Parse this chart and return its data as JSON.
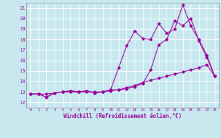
{
  "xlabel": "Windchill (Refroidissement éolien,°C)",
  "xlim": [
    -0.5,
    23.5
  ],
  "ylim": [
    11.5,
    21.5
  ],
  "ytick_labels": [
    "12",
    "13",
    "14",
    "15",
    "16",
    "17",
    "18",
    "19",
    "20",
    "21"
  ],
  "ytick_vals": [
    12,
    13,
    14,
    15,
    16,
    17,
    18,
    19,
    20,
    21
  ],
  "xtick_vals": [
    0,
    1,
    2,
    3,
    4,
    5,
    6,
    7,
    8,
    9,
    10,
    11,
    12,
    13,
    14,
    15,
    16,
    17,
    18,
    19,
    20,
    21,
    22,
    23
  ],
  "bg_color": "#c8e8f0",
  "grid_color": "#ffffff",
  "line_color": "#990099",
  "line1_x": [
    0,
    1,
    2,
    3,
    4,
    5,
    6,
    7,
    8,
    9,
    10,
    11,
    12,
    13,
    14,
    15,
    16,
    17,
    18,
    19,
    20,
    21,
    22,
    23
  ],
  "line1_y": [
    12.8,
    12.8,
    12.5,
    12.9,
    13.0,
    13.1,
    13.0,
    13.1,
    12.9,
    13.0,
    13.2,
    15.3,
    17.4,
    18.8,
    18.1,
    18.0,
    19.5,
    18.6,
    19.0,
    21.3,
    19.3,
    18.0,
    16.5,
    14.5
  ],
  "line2_x": [
    0,
    1,
    2,
    3,
    4,
    5,
    6,
    7,
    8,
    9,
    10,
    11,
    12,
    13,
    14,
    15,
    16,
    17,
    18,
    19,
    20,
    21,
    22,
    23
  ],
  "line2_y": [
    12.8,
    12.8,
    12.5,
    12.9,
    13.0,
    13.1,
    13.0,
    13.1,
    12.9,
    13.0,
    13.2,
    13.2,
    13.3,
    13.5,
    13.8,
    15.1,
    17.5,
    18.0,
    19.8,
    19.3,
    20.0,
    17.9,
    16.3,
    14.5
  ],
  "line3_x": [
    0,
    1,
    2,
    3,
    4,
    5,
    6,
    7,
    8,
    9,
    10,
    11,
    12,
    13,
    14,
    15,
    16,
    17,
    18,
    19,
    20,
    21,
    22,
    23
  ],
  "line3_y": [
    12.8,
    12.8,
    12.8,
    12.9,
    13.0,
    13.0,
    13.0,
    13.0,
    13.0,
    13.0,
    13.1,
    13.2,
    13.4,
    13.6,
    13.9,
    14.1,
    14.3,
    14.5,
    14.7,
    14.9,
    15.1,
    15.3,
    15.6,
    14.5
  ]
}
